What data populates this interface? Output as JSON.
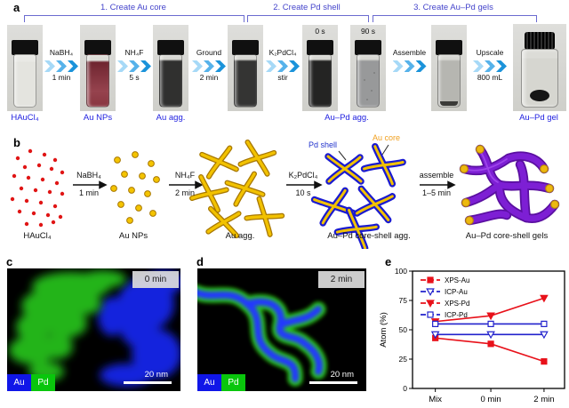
{
  "panel_a": {
    "letter": "a",
    "steps": [
      "1. Create Au core",
      "2. Create Pd shell",
      "3. Create Au–Pd gels"
    ],
    "arrows": [
      {
        "top": "NaBH₄",
        "bottom": "1 min"
      },
      {
        "top": "NH₄F",
        "bottom": "5 s"
      },
      {
        "top": "Ground",
        "bottom": "2 min"
      },
      {
        "top": "K₂PdCl₄",
        "bottom": "stir"
      },
      {
        "top": "Assemble",
        "bottom": ""
      },
      {
        "top": "Upscale",
        "bottom": "800 mL"
      }
    ],
    "time_tags": [
      "0 s",
      "90 s"
    ],
    "product_labels": [
      "HAuCl₄",
      "Au NPs",
      "Au agg.",
      "Au–Pd agg.",
      "Au–Pd gel"
    ]
  },
  "panel_b": {
    "letter": "b",
    "arrows": [
      {
        "top": "NaBH₄",
        "bottom": "1 min"
      },
      {
        "top": "NH₄F",
        "bottom": "2 min"
      },
      {
        "top": "K₂PdCl₄",
        "bottom": "10 s"
      },
      {
        "top": "assemble",
        "bottom": "1–5 min"
      }
    ],
    "annotations": {
      "pd_shell": "Pd shell",
      "au_core": "Au core"
    },
    "stage_labels": [
      "HAuCl₄",
      "Au NPs",
      "Au agg.",
      "Au–Pd core-shell agg.",
      "Au–Pd core-shell gels"
    ]
  },
  "panel_c": {
    "letter": "c",
    "time_badge": "0 min",
    "legend": [
      {
        "label": "Au",
        "color": "#1016e8"
      },
      {
        "label": "Pd",
        "color": "#09c60c"
      }
    ],
    "scale_bar": "20 nm"
  },
  "panel_d": {
    "letter": "d",
    "time_badge": "2 min",
    "legend": [
      {
        "label": "Au",
        "color": "#1016e8"
      },
      {
        "label": "Pd",
        "color": "#09c60c"
      }
    ],
    "scale_bar": "20 nm"
  },
  "panel_e": {
    "letter": "e"
  },
  "chart_data": {
    "type": "line",
    "categories": [
      "Mix",
      "0 min",
      "2 min"
    ],
    "series": [
      {
        "name": "XPS-Au",
        "values": [
          43,
          38,
          23
        ],
        "color": "#e8111a",
        "marker": "square-filled"
      },
      {
        "name": "ICP-Au",
        "values": [
          46,
          46,
          46
        ],
        "color": "#2222cc",
        "marker": "triangle-open"
      },
      {
        "name": "XPS-Pd",
        "values": [
          57,
          62,
          77
        ],
        "color": "#e8111a",
        "marker": "triangle-filled"
      },
      {
        "name": "ICP-Pd",
        "values": [
          55,
          55,
          55
        ],
        "color": "#2222cc",
        "marker": "square-open"
      }
    ],
    "ylabel": "Atom (%)",
    "ylim": [
      0,
      100
    ],
    "yticks": [
      0,
      25,
      50,
      75,
      100
    ],
    "grid": false,
    "legend_position": "upper-left"
  },
  "colors": {
    "step_label": "#4444cb",
    "product_label": "#2222e0",
    "pd_shell_text": "#2233cc",
    "au_core_text": "#f0a020",
    "gold": "#f2c200",
    "purple": "#7d1fd4",
    "red_dots": "#e01515"
  }
}
